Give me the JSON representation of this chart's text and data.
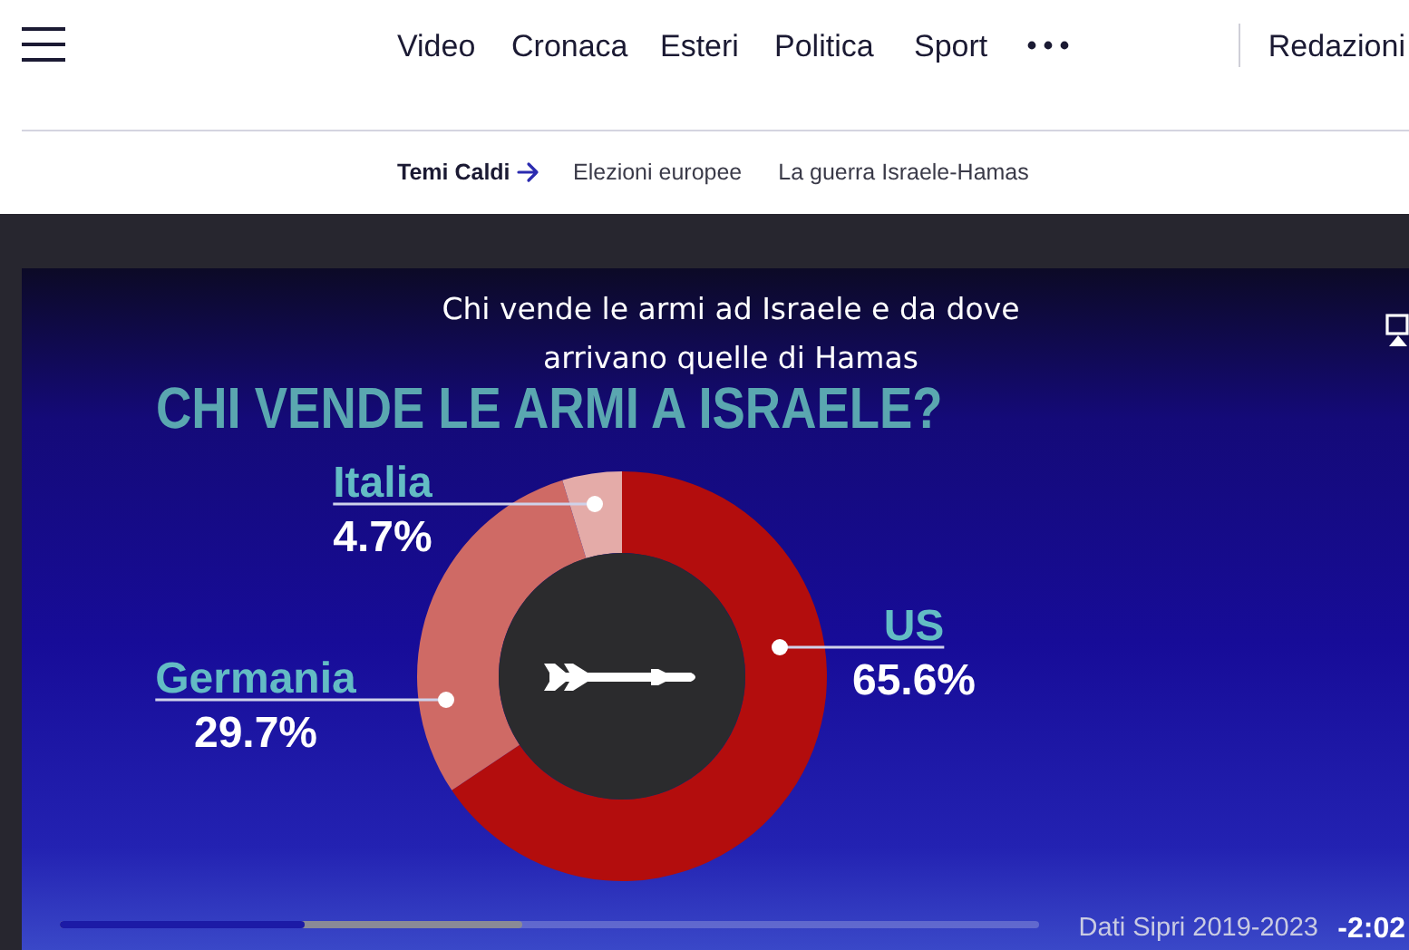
{
  "chart_data": {
    "type": "donut",
    "title": "Chi vende le armi ad Israele e da dove arrivano quelle di Hamas",
    "subtitle": "CHI VENDE LE ARMI A ISRAELE?",
    "categories": [
      "US",
      "Germania",
      "Italia"
    ],
    "values": [
      65.6,
      29.7,
      4.7
    ],
    "colors": [
      "#b30d0d",
      "#cf6a65",
      "#e4aba8"
    ],
    "value_labels": [
      "65.6%",
      "29.7%",
      "4.7%"
    ],
    "annotations": [
      "Video",
      "Cronaca",
      "Esteri",
      "Politica",
      "Sport",
      "Redazioni",
      "Temi Caldi",
      "Elezioni europee",
      "La guerra Israele-Hamas",
      "Dati Sipri 2019-2023",
      "-2:02"
    ]
  }
}
